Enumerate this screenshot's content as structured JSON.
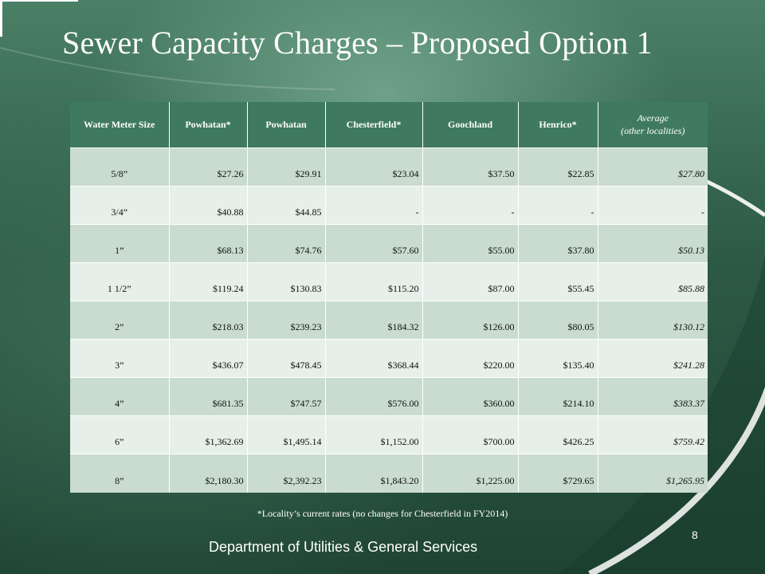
{
  "slide": {
    "title": "Sewer Capacity Charges – Proposed Option 1",
    "footnote": "*Locality’s current rates (no changes for Chesterfield in FY2014)",
    "department": "Department of Utilities & General Services",
    "page_number": "8"
  },
  "table": {
    "headers": [
      "Water Meter Size",
      "Powhatan*",
      "Powhatan",
      "Chesterfield*",
      "Goochland",
      "Henrico*",
      "Average",
      "(other localities)"
    ],
    "rows": [
      [
        "5/8”",
        "$27.26",
        "$29.91",
        "$23.04",
        "$37.50",
        "$22.85",
        "$27.80"
      ],
      [
        "3/4”",
        "$40.88",
        "$44.85",
        "-",
        "-",
        "-",
        "-"
      ],
      [
        "1”",
        "$68.13",
        "$74.76",
        "$57.60",
        "$55.00",
        "$37.80",
        "$50.13"
      ],
      [
        "1 1/2”",
        "$119.24",
        "$130.83",
        "$115.20",
        "$87.00",
        "$55.45",
        "$85.88"
      ],
      [
        "2”",
        "$218.03",
        "$239.23",
        "$184.32",
        "$126.00",
        "$80.05",
        "$130.12"
      ],
      [
        "3”",
        "$436.07",
        "$478.45",
        "$368.44",
        "$220.00",
        "$135.40",
        "$241.28"
      ],
      [
        "4”",
        "$681.35",
        "$747.57",
        "$576.00",
        "$360.00",
        "$214.10",
        "$383.37"
      ],
      [
        "6”",
        "$1,362.69",
        "$1,495.14",
        "$1,152.00",
        "$700.00",
        "$426.25",
        "$759.42"
      ],
      [
        "8”",
        "$2,180.30",
        "$2,392.23",
        "$1,843.20",
        "$1,225.00",
        "$729.65",
        "$1,265.95"
      ]
    ]
  },
  "colors": {
    "header_bg": "#3f7a5e",
    "row_odd": "#c9dccf",
    "row_even": "#e6efe9"
  }
}
